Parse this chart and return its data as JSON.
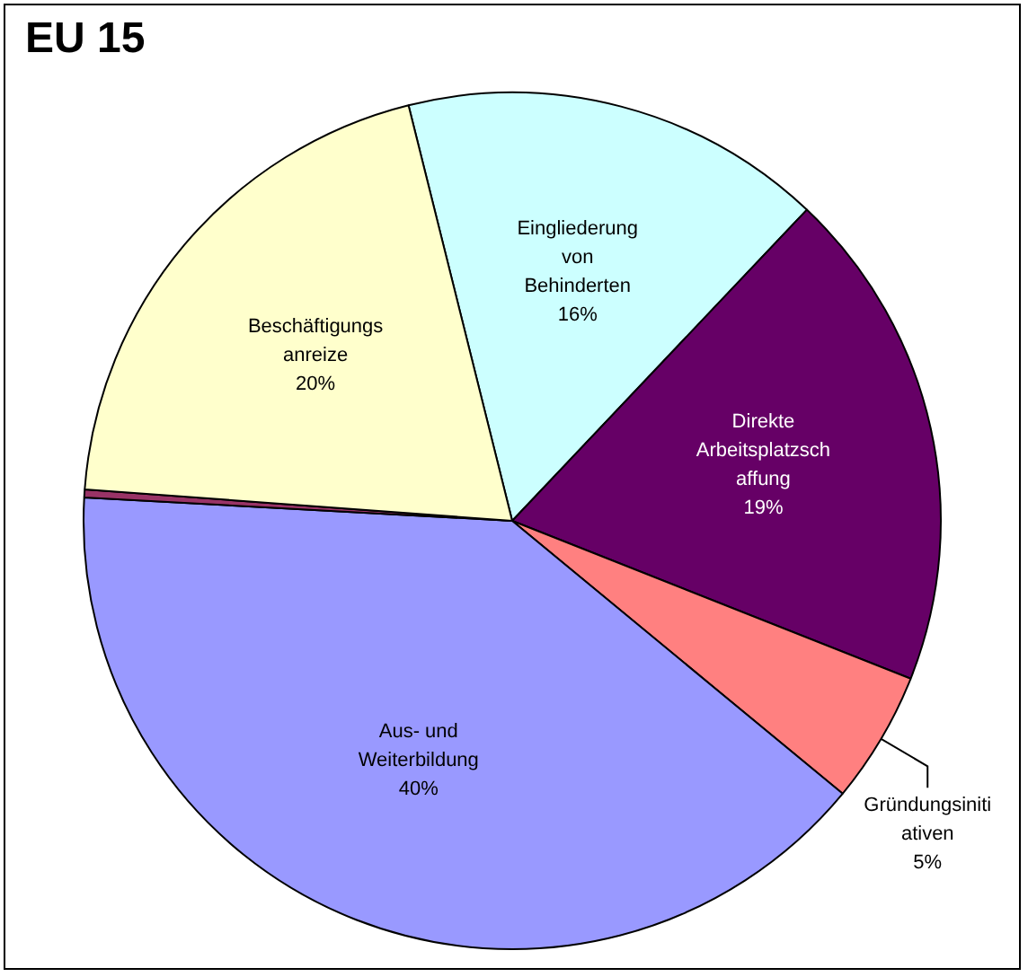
{
  "chart_data": {
    "type": "pie",
    "title": "EU 15",
    "categories": [
      "Eingliederung von Behinderten",
      "Direkte Arbeitsplatzschaffung",
      "Gründungsinitiativen",
      "Aus- und Weiterbildung",
      null,
      "Beschäftigungsanreize"
    ],
    "values": [
      16,
      19,
      5,
      40,
      0.3,
      20
    ],
    "colors": [
      "#ccffff",
      "#660066",
      "#ff8080",
      "#9999ff",
      "#993366",
      "#ffffcc"
    ],
    "value_labels": [
      "16%",
      "19%",
      "5%",
      "40%",
      null,
      "20%"
    ]
  }
}
